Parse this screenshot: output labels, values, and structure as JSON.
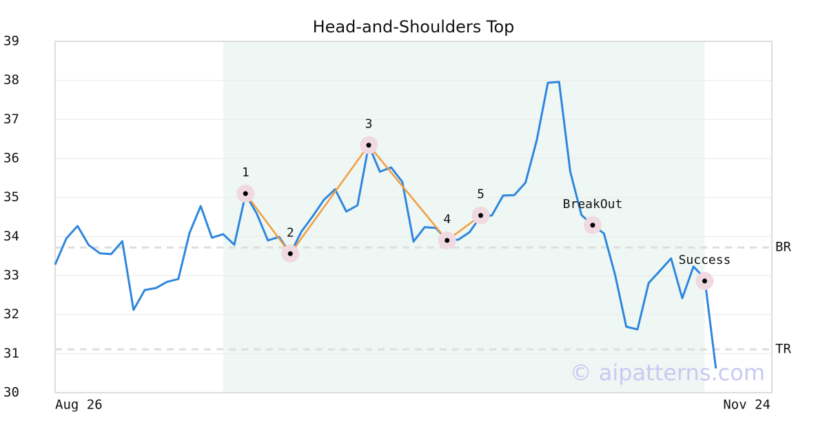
{
  "chart_data": {
    "type": "line",
    "title": "Head-and-Shoulders Top",
    "x": [
      0,
      1,
      2,
      3,
      4,
      5,
      6,
      7,
      8,
      9,
      10,
      11,
      12,
      13,
      14,
      15,
      16,
      17,
      18,
      19,
      20,
      21,
      22,
      23,
      24,
      25,
      26,
      27,
      28,
      29,
      30,
      31,
      32,
      33,
      34,
      35,
      36,
      37,
      38,
      39,
      40,
      41,
      42,
      43,
      44,
      45,
      46,
      47,
      48,
      49,
      50,
      51,
      52,
      53,
      54,
      55,
      56,
      57,
      58,
      59
    ],
    "series": [
      {
        "color": "#2e86de",
        "values": [
          33.28,
          33.95,
          34.27,
          33.78,
          33.57,
          33.55,
          33.88,
          32.12,
          32.63,
          32.68,
          32.84,
          32.91,
          34.09,
          34.78,
          33.97,
          34.06,
          33.79,
          35.08,
          34.59,
          33.9,
          33.99,
          33.56,
          34.13,
          34.52,
          34.94,
          35.21,
          34.64,
          34.8,
          36.34,
          35.66,
          35.77,
          35.4,
          33.87,
          34.24,
          34.22,
          33.9,
          33.92,
          34.11,
          34.52,
          34.54,
          35.05,
          35.06,
          35.38,
          36.46,
          37.94,
          37.96,
          35.66,
          34.55,
          34.29,
          34.08,
          33.02,
          31.69,
          31.62,
          32.81,
          33.12,
          33.44,
          32.42,
          33.23,
          32.93,
          30.62
        ]
      }
    ],
    "xlim": [
      0,
      64
    ],
    "xticks": [
      {
        "value": 0,
        "label": "Aug 26"
      },
      {
        "value": 64,
        "label": "Nov 24"
      }
    ],
    "ylim": [
      30,
      39
    ],
    "yticks": [
      30,
      31,
      32,
      33,
      34,
      35,
      36,
      37,
      38,
      39
    ],
    "grid": true,
    "highlight_x": [
      15,
      58
    ],
    "pattern": {
      "color": "#f39c3d",
      "points": [
        {
          "label": "1",
          "x": 17,
          "y": 35.1
        },
        {
          "label": "2",
          "x": 21,
          "y": 33.56
        },
        {
          "label": "3",
          "x": 28,
          "y": 36.34
        },
        {
          "label": "4",
          "x": 35,
          "y": 33.9
        },
        {
          "label": "5",
          "x": 38,
          "y": 34.54
        }
      ]
    },
    "events": [
      {
        "label": "BreakOut",
        "x": 48,
        "y": 34.29
      },
      {
        "label": "Success",
        "x": 58,
        "y": 32.86
      }
    ],
    "levels": [
      {
        "label": "BR",
        "value": 33.72
      },
      {
        "label": "TR",
        "value": 31.11
      }
    ],
    "watermark": "© aipatterns.com"
  }
}
